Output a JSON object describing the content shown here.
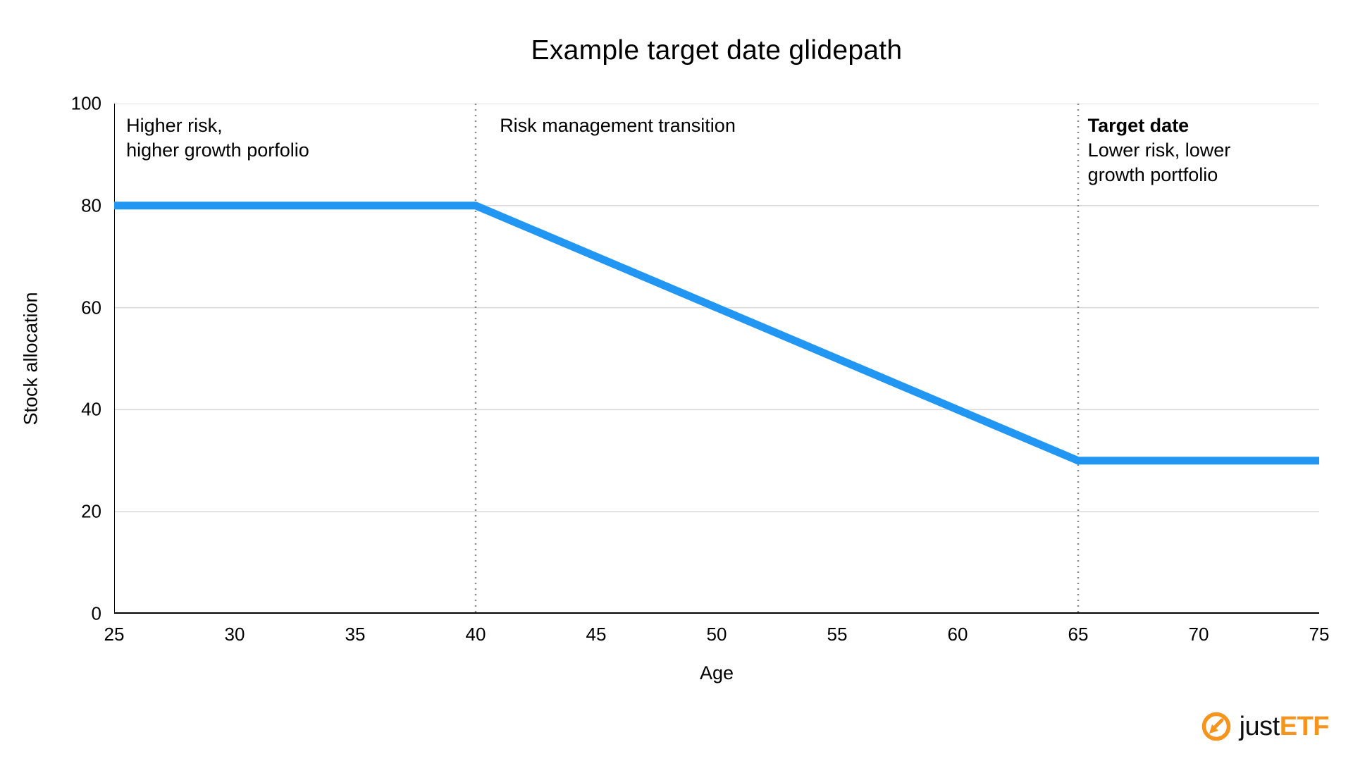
{
  "chart_data": {
    "type": "line",
    "title": "Example target date glidepath",
    "xlabel": "Age",
    "ylabel": "Stock allocation",
    "xlim": [
      25,
      75
    ],
    "ylim": [
      0,
      100
    ],
    "xticks": [
      25,
      30,
      35,
      40,
      45,
      50,
      55,
      60,
      65,
      70,
      75
    ],
    "yticks": [
      0,
      20,
      40,
      60,
      80,
      100
    ],
    "grid": "horizontal",
    "grid_color": "#d8d8d8",
    "axis_color": "#000000",
    "series": [
      {
        "name": "stock-allocation-glidepath",
        "color": "#2196F3",
        "width": 11,
        "points": [
          [
            25,
            80
          ],
          [
            40,
            80
          ],
          [
            65,
            30
          ],
          [
            75,
            30
          ]
        ]
      }
    ],
    "vlines": [
      {
        "x": 40,
        "style": "dotted",
        "color": "#8c8c8c"
      },
      {
        "x": 65,
        "style": "dotted",
        "color": "#8c8c8c"
      }
    ],
    "annotations": [
      {
        "x": 25.5,
        "y": 98,
        "bold_first": false,
        "lines": [
          "Higher risk,",
          "higher growth porfolio"
        ]
      },
      {
        "x": 41.0,
        "y": 98,
        "bold_first": false,
        "lines": [
          "Risk management transition"
        ]
      },
      {
        "x": 65.4,
        "y": 98,
        "bold_first": true,
        "lines": [
          "Target date",
          "Lower risk, lower",
          "growth portfolio"
        ]
      }
    ]
  },
  "logo": {
    "text_just": "just",
    "text_etf": "ETF",
    "orange": "#F7941E"
  }
}
